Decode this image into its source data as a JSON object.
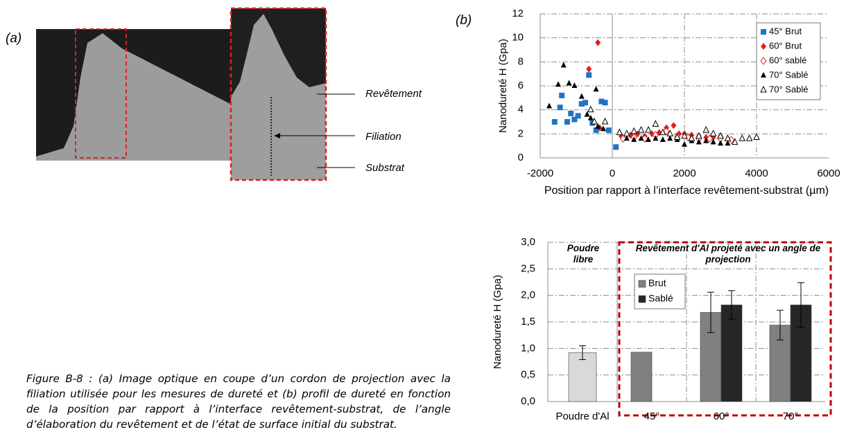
{
  "panel_a": {
    "label": "(a)",
    "annotations": [
      "Revêtement",
      "Filiation",
      "Substrat"
    ]
  },
  "caption": "Figure B-8 : (a) Image optique en coupe d’un cordon de projection avec la filiation utilisée pour les mesures de dureté et (b) profil de dureté en fonction de la position par rapport à l’interface revêtement-substrat, de l’angle d’élaboration du revêtement et de l’état de surface initial du substrat.",
  "chart_data": [
    {
      "type": "scatter",
      "panel_label": "(b)",
      "ylabel": "Nanodureté H (Gpa)",
      "xlabel": "Position par rapport à l’interface revêtement-substrat (µm)",
      "xlim": [
        -2000,
        6000
      ],
      "xticks": [
        -2000,
        0,
        2000,
        4000,
        6000
      ],
      "ylim": [
        0,
        12
      ],
      "yticks": [
        0,
        2,
        4,
        6,
        8,
        10,
        12
      ],
      "grid": true,
      "legend": "upper-right",
      "series": [
        {
          "name": "45° Brut",
          "color": "#1f74c4",
          "marker": "square",
          "x": [
            -1600,
            -1450,
            -1400,
            -1250,
            -1150,
            -1050,
            -950,
            -850,
            -750,
            -650,
            -550,
            -450,
            -300,
            -200,
            -100,
            100
          ],
          "values": [
            3.0,
            4.2,
            5.2,
            3.0,
            3.7,
            3.2,
            3.5,
            4.5,
            4.6,
            6.9,
            2.9,
            2.3,
            4.7,
            4.6,
            2.3,
            0.9
          ]
        },
        {
          "name": "60° Brut",
          "color": "#e0201c",
          "marker": "diamond",
          "x": [
            -650,
            -400,
            -350,
            250,
            500,
            700,
            900,
            1100,
            1300,
            1500,
            1700,
            1850,
            2000,
            2200,
            2400,
            2600,
            2800,
            3000
          ],
          "values": [
            7.4,
            9.6,
            2.5,
            1.8,
            1.9,
            2.0,
            1.8,
            2.0,
            2.1,
            2.5,
            2.7,
            2.0,
            2.0,
            1.9,
            1.8,
            1.7,
            1.7,
            1.8
          ]
        },
        {
          "name": "60° sablé",
          "color": "#e0201c",
          "marker": "diamond-open",
          "x": [
            300,
            600,
            900,
            1200,
            1500,
            1800,
            2100,
            2400,
            2700,
            3000,
            3300
          ],
          "values": [
            1.6,
            1.7,
            1.6,
            1.9,
            2.2,
            1.8,
            1.7,
            1.6,
            1.6,
            1.6,
            1.5
          ]
        },
        {
          "name": "70° Sablé",
          "color": "#000000",
          "marker": "triangle",
          "x": [
            -1750,
            -1500,
            -1350,
            -1200,
            -1050,
            -850,
            -700,
            -600,
            -450,
            -400,
            -250,
            400,
            600,
            800,
            1000,
            1200,
            1400,
            1600,
            1800,
            2000,
            2200,
            2400,
            2600,
            2800,
            3000,
            3200
          ],
          "values": [
            4.3,
            6.1,
            7.7,
            6.2,
            6.0,
            5.1,
            3.6,
            3.3,
            5.7,
            2.6,
            2.4,
            1.6,
            1.5,
            1.6,
            1.5,
            1.6,
            1.5,
            1.6,
            1.5,
            1.1,
            1.4,
            1.3,
            1.4,
            1.3,
            1.2,
            1.2
          ]
        },
        {
          "name": "70° Sablé",
          "color": "#000000",
          "marker": "triangle-open",
          "x": [
            -600,
            -500,
            -200,
            200,
            400,
            600,
            800,
            1000,
            1200,
            1400,
            1600,
            1800,
            2000,
            2200,
            2400,
            2600,
            2800,
            3000,
            3200,
            3400,
            3600,
            3800,
            4000
          ],
          "values": [
            4.0,
            3.0,
            3.0,
            2.1,
            2.0,
            2.2,
            2.3,
            2.3,
            2.8,
            2.1,
            2.0,
            1.7,
            1.8,
            1.6,
            1.8,
            2.3,
            2.0,
            1.8,
            1.6,
            1.3,
            1.6,
            1.6,
            1.7
          ]
        }
      ]
    },
    {
      "type": "bar",
      "ylabel": "Nanodureté H (Gpa)",
      "categories": [
        "Poudre d'Al",
        "45°",
        "60°",
        "70°"
      ],
      "ylim": [
        0,
        3
      ],
      "yticks": [
        {
          "value": 0,
          "label": "0,0"
        },
        {
          "value": 0.5,
          "label": "0,5"
        },
        {
          "value": 1,
          "label": "1,0"
        },
        {
          "value": 1.5,
          "label": "1,5"
        },
        {
          "value": 2,
          "label": "2,0"
        },
        {
          "value": 2.5,
          "label": "2,5"
        },
        {
          "value": 3,
          "label": "3,0"
        }
      ],
      "grid": true,
      "legend": "upper-left",
      "annotations": [
        "Poudre libre",
        "Revêtement d'Al projeté avec un angle de projection"
      ],
      "series": [
        {
          "color": "#d9d9d9",
          "values": [
            0.92,
            null,
            null,
            null
          ],
          "errors": [
            0.13,
            null,
            null,
            null
          ]
        },
        {
          "name": "Brut",
          "color": "#808080",
          "values": [
            null,
            0.93,
            1.68,
            1.44
          ],
          "errors": [
            null,
            null,
            0.38,
            0.28
          ]
        },
        {
          "name": "Sablé",
          "color": "#262626",
          "values": [
            null,
            null,
            1.82,
            1.82
          ],
          "errors": [
            null,
            null,
            0.27,
            0.42
          ]
        }
      ]
    }
  ]
}
